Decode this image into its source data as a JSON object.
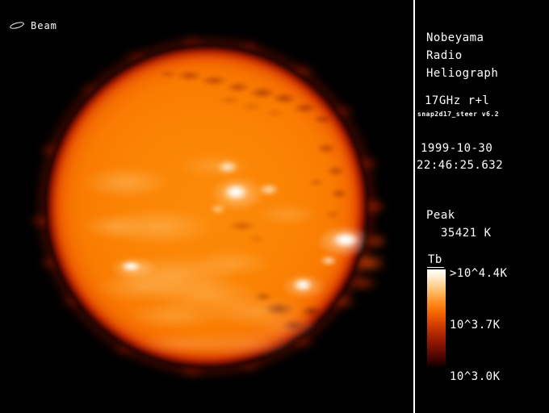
{
  "beam": {
    "label": "Beam"
  },
  "panel": {
    "instrument_lines": [
      "Nobeyama",
      "Radio",
      "Heliograph"
    ],
    "frequency": "17GHz r+l",
    "version": "snap2d17_steer v6.2",
    "date": "1999-10-30",
    "time": "22:46:25.632",
    "peak_label": "Peak",
    "peak_value": "35421 K",
    "colorbar": {
      "title": "Tb",
      "top_label": ">10^4.4K",
      "mid_label": "10^3.7K",
      "bottom_label": "10^3.0K"
    }
  },
  "colors": {
    "background": "#000000",
    "text": "#ffffff",
    "divider": "#ffffff",
    "sun_base": "#fb8304",
    "sun_limb": "#8e1400",
    "colorbar_top": "#ffffff",
    "colorbar_bottom": "#000000"
  }
}
